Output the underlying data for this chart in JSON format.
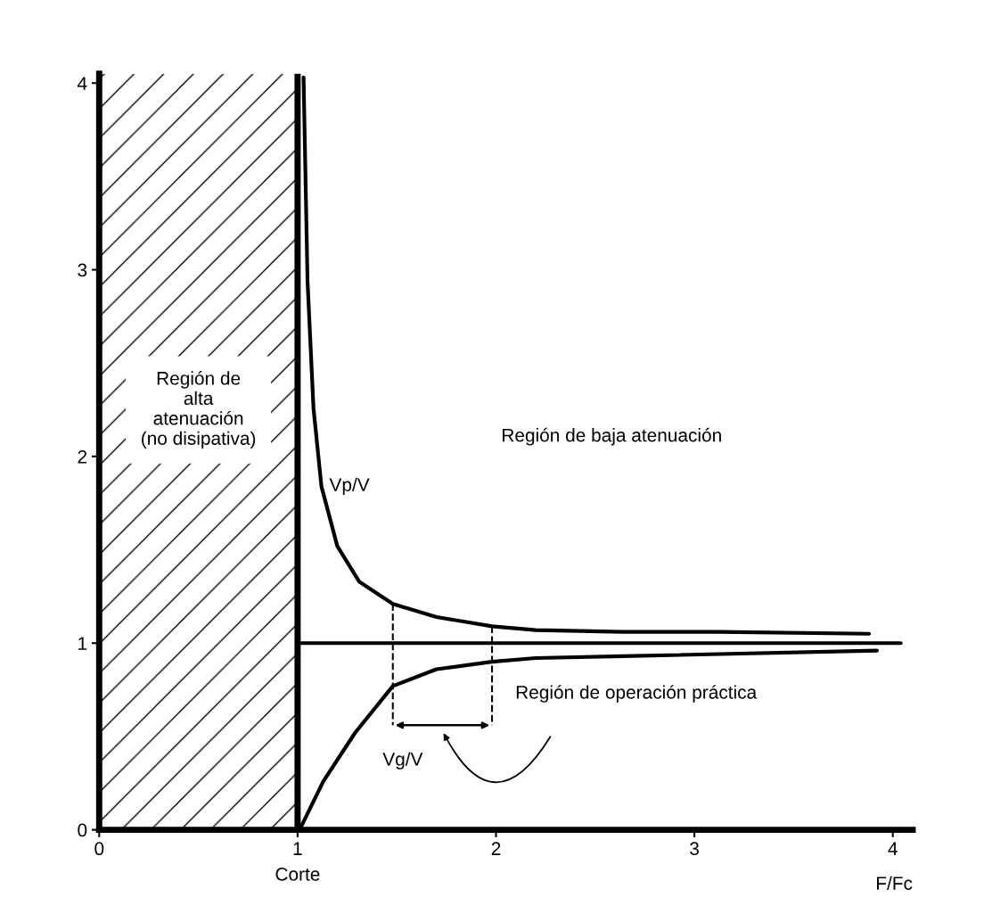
{
  "chart_data": {
    "type": "line",
    "xlabel": "F/Fc",
    "xlim": [
      0,
      4.1
    ],
    "ylim": [
      0,
      4.05
    ],
    "xticks": [
      0,
      1,
      2,
      3,
      4
    ],
    "yticks": [
      0,
      1,
      2,
      3,
      4
    ],
    "grid": false,
    "legend": false,
    "marker": "none",
    "series": [
      {
        "name": "Vp/V",
        "color": "#000000",
        "x": [
          1.03,
          1.05,
          1.08,
          1.12,
          1.2,
          1.31,
          1.48,
          1.7,
          1.98,
          2.2,
          2.64,
          3.12,
          3.88
        ],
        "values": [
          4.03,
          2.94,
          2.26,
          1.84,
          1.52,
          1.33,
          1.21,
          1.14,
          1.09,
          1.07,
          1.06,
          1.06,
          1.05
        ]
      },
      {
        "color": "#000000",
        "x": [
          1.0,
          4.04
        ],
        "values": [
          1.0,
          1.0
        ]
      },
      {
        "name": "Vg/V",
        "color": "#000000",
        "x": [
          1.01,
          1.13,
          1.29,
          1.48,
          1.7,
          1.98,
          2.2,
          2.64,
          3.92
        ],
        "values": [
          0.0,
          0.26,
          0.52,
          0.77,
          0.86,
          0.9,
          0.92,
          0.93,
          0.96
        ]
      },
      {
        "color": "#000000",
        "line_style": "dashed",
        "x": [
          1.48,
          1.48
        ],
        "values": [
          1.21,
          0.56
        ]
      },
      {
        "color": "#000000",
        "line_style": "dashed",
        "x": [
          1.98,
          1.98
        ],
        "values": [
          1.09,
          0.56
        ]
      }
    ],
    "ref_lines": [
      {
        "axis": "x",
        "value": 1,
        "label": "Corte",
        "color": "#000000"
      }
    ],
    "bands": [
      {
        "axis": "x",
        "from": 0,
        "to": 1,
        "label": "Región de\nalta\natenuación\n(no disipativa)"
      }
    ],
    "annotations": [
      "Región de baja atenuación",
      "Región de operación práctica"
    ]
  }
}
